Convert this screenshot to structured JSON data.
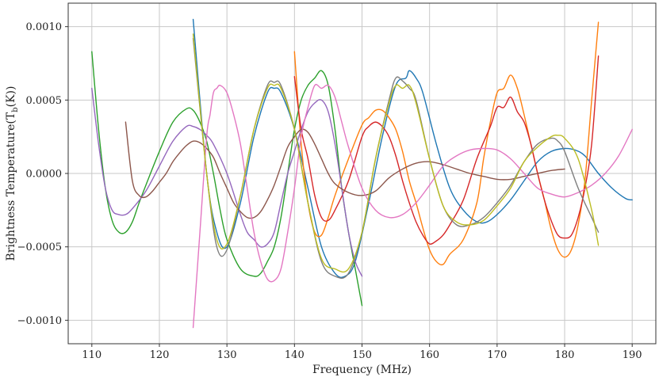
{
  "chart_data": {
    "type": "line",
    "title": "",
    "xlabel": "Frequency (MHz)",
    "ylabel": "Brightness Temperature(T_b(K))",
    "xlim": [
      106.5,
      193.5
    ],
    "ylim": [
      -0.00116,
      0.00116
    ],
    "grid": true,
    "x_ticks": [
      110,
      120,
      130,
      140,
      150,
      160,
      170,
      180,
      190
    ],
    "x_tick_labels": [
      "110",
      "120",
      "130",
      "140",
      "150",
      "160",
      "170",
      "180",
      "190"
    ],
    "y_ticks": [
      0.001,
      0.0005,
      0.0,
      -0.0005,
      -0.001
    ],
    "y_tick_labels": [
      "0.0010",
      "0.0005",
      "0.0000",
      "−0.0005",
      "−0.0010"
    ],
    "series": [
      {
        "color": "#1f77b4",
        "x": [
          125,
          127,
          128.5,
          130,
          132,
          134,
          136,
          137,
          138,
          140,
          142,
          144,
          146,
          147.5,
          149,
          151,
          153,
          155,
          156.5,
          157,
          158,
          159,
          161,
          163,
          165,
          167,
          168.5,
          170,
          172,
          174,
          176,
          178,
          180,
          181.5,
          183,
          185,
          187,
          189,
          190
        ],
        "y": [
          0.00105,
          0.0,
          -0.0004,
          -0.0005,
          -0.0002,
          0.00025,
          0.00055,
          0.00058,
          0.00055,
          0.0003,
          -0.0001,
          -0.0005,
          -0.00068,
          -0.0007,
          -0.0006,
          -0.0002,
          0.00025,
          0.0006,
          0.00065,
          0.0007,
          0.00065,
          0.00055,
          0.0002,
          -0.0001,
          -0.00025,
          -0.00033,
          -0.00033,
          -0.00028,
          -0.00018,
          -5e-05,
          8e-05,
          0.00015,
          0.00017,
          0.00016,
          0.00012,
          0.0,
          -0.0001,
          -0.00017,
          -0.00018
        ]
      },
      {
        "color": "#ff7f0e",
        "x": [
          140,
          141,
          142,
          143,
          144,
          145,
          146,
          148,
          150,
          151,
          152,
          153,
          154,
          155,
          156,
          157,
          158,
          159,
          160,
          161,
          162,
          163,
          165,
          167,
          168,
          169,
          170,
          171,
          172,
          173,
          174,
          175,
          176,
          177,
          178,
          179,
          180,
          181,
          182,
          183,
          184,
          185
        ],
        "y": [
          0.00083,
          0.0002,
          -0.0002,
          -0.0004,
          -0.00042,
          -0.0003,
          -0.00015,
          0.0001,
          0.00033,
          0.00038,
          0.00043,
          0.00043,
          0.00038,
          0.0003,
          0.00015,
          -5e-05,
          -0.0002,
          -0.00037,
          -0.00052,
          -0.0006,
          -0.00062,
          -0.00055,
          -0.00045,
          -0.0002,
          0.0001,
          0.00035,
          0.00055,
          0.00058,
          0.00067,
          0.00058,
          0.0004,
          0.0002,
          0.0,
          -0.00018,
          -0.00038,
          -0.00052,
          -0.00057,
          -0.00052,
          -0.00035,
          -5e-05,
          0.0005,
          0.00103
        ]
      },
      {
        "color": "#2ca02c",
        "x": [
          110,
          111,
          112,
          113,
          114,
          115,
          116,
          117,
          118,
          120,
          122,
          124,
          125,
          126,
          127,
          128,
          129,
          130,
          132,
          134,
          135,
          136,
          137,
          138,
          139,
          140,
          141,
          142,
          143,
          144,
          145,
          146,
          147,
          148,
          149,
          150
        ],
        "y": [
          0.00083,
          0.0003,
          -0.0001,
          -0.00032,
          -0.0004,
          -0.0004,
          -0.00033,
          -0.0002,
          -8e-05,
          0.00015,
          0.00035,
          0.00044,
          0.00043,
          0.00035,
          0.00022,
          0.0,
          -0.00025,
          -0.00045,
          -0.00065,
          -0.0007,
          -0.00068,
          -0.0006,
          -0.0005,
          -0.0003,
          0.0,
          0.0003,
          0.0005,
          0.0006,
          0.00065,
          0.0007,
          0.0006,
          0.0003,
          -0.0001,
          -0.0004,
          -0.00065,
          -0.0009
        ]
      },
      {
        "color": "#d62728",
        "x": [
          140,
          141,
          142,
          143,
          144,
          145,
          146,
          148,
          150,
          151,
          152,
          153,
          154,
          155,
          156,
          157,
          158,
          159,
          160,
          161,
          162,
          163,
          165,
          167,
          169,
          170,
          171,
          172,
          173,
          174,
          175,
          176,
          177,
          178,
          179,
          180,
          181,
          182,
          183,
          184,
          185
        ],
        "y": [
          0.00066,
          0.0003,
          0.0001,
          -0.00015,
          -0.0003,
          -0.00032,
          -0.00025,
          -5e-05,
          0.00025,
          0.00032,
          0.00035,
          0.00032,
          0.00025,
          0.00012,
          -5e-05,
          -0.0002,
          -0.00033,
          -0.00042,
          -0.00048,
          -0.00046,
          -0.00042,
          -0.00035,
          -0.00018,
          0.0001,
          0.00032,
          0.00045,
          0.00045,
          0.00052,
          0.00042,
          0.00035,
          0.0002,
          0.0,
          -0.00018,
          -0.00032,
          -0.00042,
          -0.00044,
          -0.00042,
          -0.0003,
          -0.0001,
          0.0002,
          0.0008
        ]
      },
      {
        "color": "#9467bd",
        "x": [
          110,
          111,
          112,
          113,
          114,
          115,
          116,
          118,
          120,
          122,
          124,
          125,
          126,
          127,
          128,
          130,
          132,
          133,
          134,
          135,
          136,
          137,
          138,
          139,
          140,
          141,
          142,
          143,
          144,
          145,
          146,
          147,
          148,
          149,
          150
        ],
        "y": [
          0.00058,
          0.0002,
          -0.0001,
          -0.00025,
          -0.00028,
          -0.00028,
          -0.00024,
          -0.00012,
          5e-05,
          0.00022,
          0.00032,
          0.00032,
          0.0003,
          0.00026,
          0.0002,
          0.0,
          -0.00028,
          -0.0004,
          -0.00045,
          -0.0005,
          -0.00048,
          -0.0004,
          -0.0002,
          0.0,
          0.00015,
          0.0003,
          0.00042,
          0.00048,
          0.0005,
          0.00042,
          0.0002,
          -0.0001,
          -0.0004,
          -0.0006,
          -0.0007
        ]
      },
      {
        "color": "#8c564b",
        "x": [
          115,
          116,
          117,
          118,
          119,
          120,
          121,
          122,
          123,
          124,
          125,
          126,
          127,
          128,
          129,
          130,
          131,
          132,
          133,
          134,
          135,
          136,
          137,
          138,
          139,
          140,
          141,
          142,
          143,
          144,
          145,
          146,
          148,
          150,
          152,
          154,
          156,
          158,
          160,
          162,
          164,
          166,
          168,
          170,
          172,
          174,
          176,
          178,
          180
        ],
        "y": [
          0.00035,
          -5e-05,
          -0.00015,
          -0.00016,
          -0.00012,
          -6e-05,
          0.0,
          8e-05,
          0.00014,
          0.00019,
          0.00022,
          0.00021,
          0.00017,
          0.00011,
          0.0,
          -0.0001,
          -0.0002,
          -0.00026,
          -0.0003,
          -0.0003,
          -0.00026,
          -0.00018,
          -8e-05,
          5e-05,
          0.00018,
          0.00025,
          0.0003,
          0.00028,
          0.0002,
          0.0001,
          0.0,
          -7e-05,
          -0.00013,
          -0.00015,
          -0.00012,
          -3e-05,
          3e-05,
          7e-05,
          8e-05,
          6e-05,
          3e-05,
          0.0,
          -2e-05,
          -4e-05,
          -4e-05,
          -2e-05,
          0.0,
          2e-05,
          3e-05
        ]
      },
      {
        "color": "#e377c2",
        "x": [
          125,
          126,
          127,
          127.5,
          128,
          128.5,
          129,
          130,
          131,
          132,
          133,
          134,
          135,
          136,
          137,
          138,
          139,
          140,
          141,
          142,
          143,
          144,
          145,
          146,
          147,
          148,
          150,
          152,
          154,
          156,
          158,
          160,
          162,
          164,
          166,
          168,
          170,
          172,
          174,
          176,
          178,
          180,
          182,
          184,
          186,
          188,
          190
        ],
        "y": [
          -0.00105,
          -0.0004,
          0.00025,
          0.0004,
          0.00055,
          0.00058,
          0.0006,
          0.00055,
          0.0004,
          0.0002,
          -0.0001,
          -0.0004,
          -0.0006,
          -0.00072,
          -0.00073,
          -0.00065,
          -0.0004,
          -0.0001,
          0.00025,
          0.00045,
          0.0006,
          0.00058,
          0.0006,
          0.00052,
          0.00035,
          0.00018,
          -0.0001,
          -0.00025,
          -0.0003,
          -0.00028,
          -0.0002,
          -8e-05,
          5e-05,
          0.00012,
          0.00016,
          0.00017,
          0.00016,
          0.0001,
          0.0,
          -0.0001,
          -0.00014,
          -0.00016,
          -0.00013,
          -8e-05,
          0.0,
          0.00012,
          0.0003
        ]
      },
      {
        "color": "#7f7f7f",
        "x": [
          125,
          127,
          128.5,
          130,
          132,
          134,
          136,
          137,
          138,
          140,
          142,
          144,
          146,
          148,
          150,
          152,
          154,
          155,
          156,
          157,
          158,
          160,
          162,
          164,
          166,
          168,
          170,
          172,
          174,
          176,
          178,
          179,
          180,
          182,
          184,
          185
        ],
        "y": [
          0.00092,
          0.0,
          -0.0005,
          -0.00052,
          -0.00015,
          0.0003,
          0.0006,
          0.00062,
          0.0006,
          0.0003,
          -0.0002,
          -0.0006,
          -0.0007,
          -0.00068,
          -0.0004,
          0.0001,
          0.0005,
          0.00065,
          0.00063,
          0.00058,
          0.0005,
          0.0001,
          -0.00022,
          -0.00035,
          -0.00035,
          -0.0003,
          -0.0002,
          -8e-05,
          8e-05,
          0.0002,
          0.00024,
          0.00022,
          0.00015,
          -0.0001,
          -0.0003,
          -0.0004
        ]
      },
      {
        "color": "#bcbd22",
        "x": [
          125,
          127,
          128.5,
          130,
          132,
          134,
          136,
          137,
          138,
          140,
          142,
          144,
          146,
          148,
          150,
          152,
          154,
          155,
          156,
          157,
          158,
          160,
          162,
          164,
          166,
          168,
          170,
          172,
          174,
          176,
          178,
          179,
          180,
          182,
          184,
          185
        ],
        "y": [
          0.00095,
          0.0,
          -0.00045,
          -0.00048,
          -0.00015,
          0.0003,
          0.00058,
          0.0006,
          0.00058,
          0.0003,
          -0.0002,
          -0.00058,
          -0.00065,
          -0.00065,
          -0.0004,
          0.0001,
          0.00048,
          0.0006,
          0.00058,
          0.0006,
          0.00048,
          0.0001,
          -0.00022,
          -0.00033,
          -0.00035,
          -0.00032,
          -0.00022,
          -0.0001,
          8e-05,
          0.00018,
          0.00025,
          0.00026,
          0.00024,
          0.0001,
          -0.00025,
          -0.00049
        ]
      }
    ]
  }
}
